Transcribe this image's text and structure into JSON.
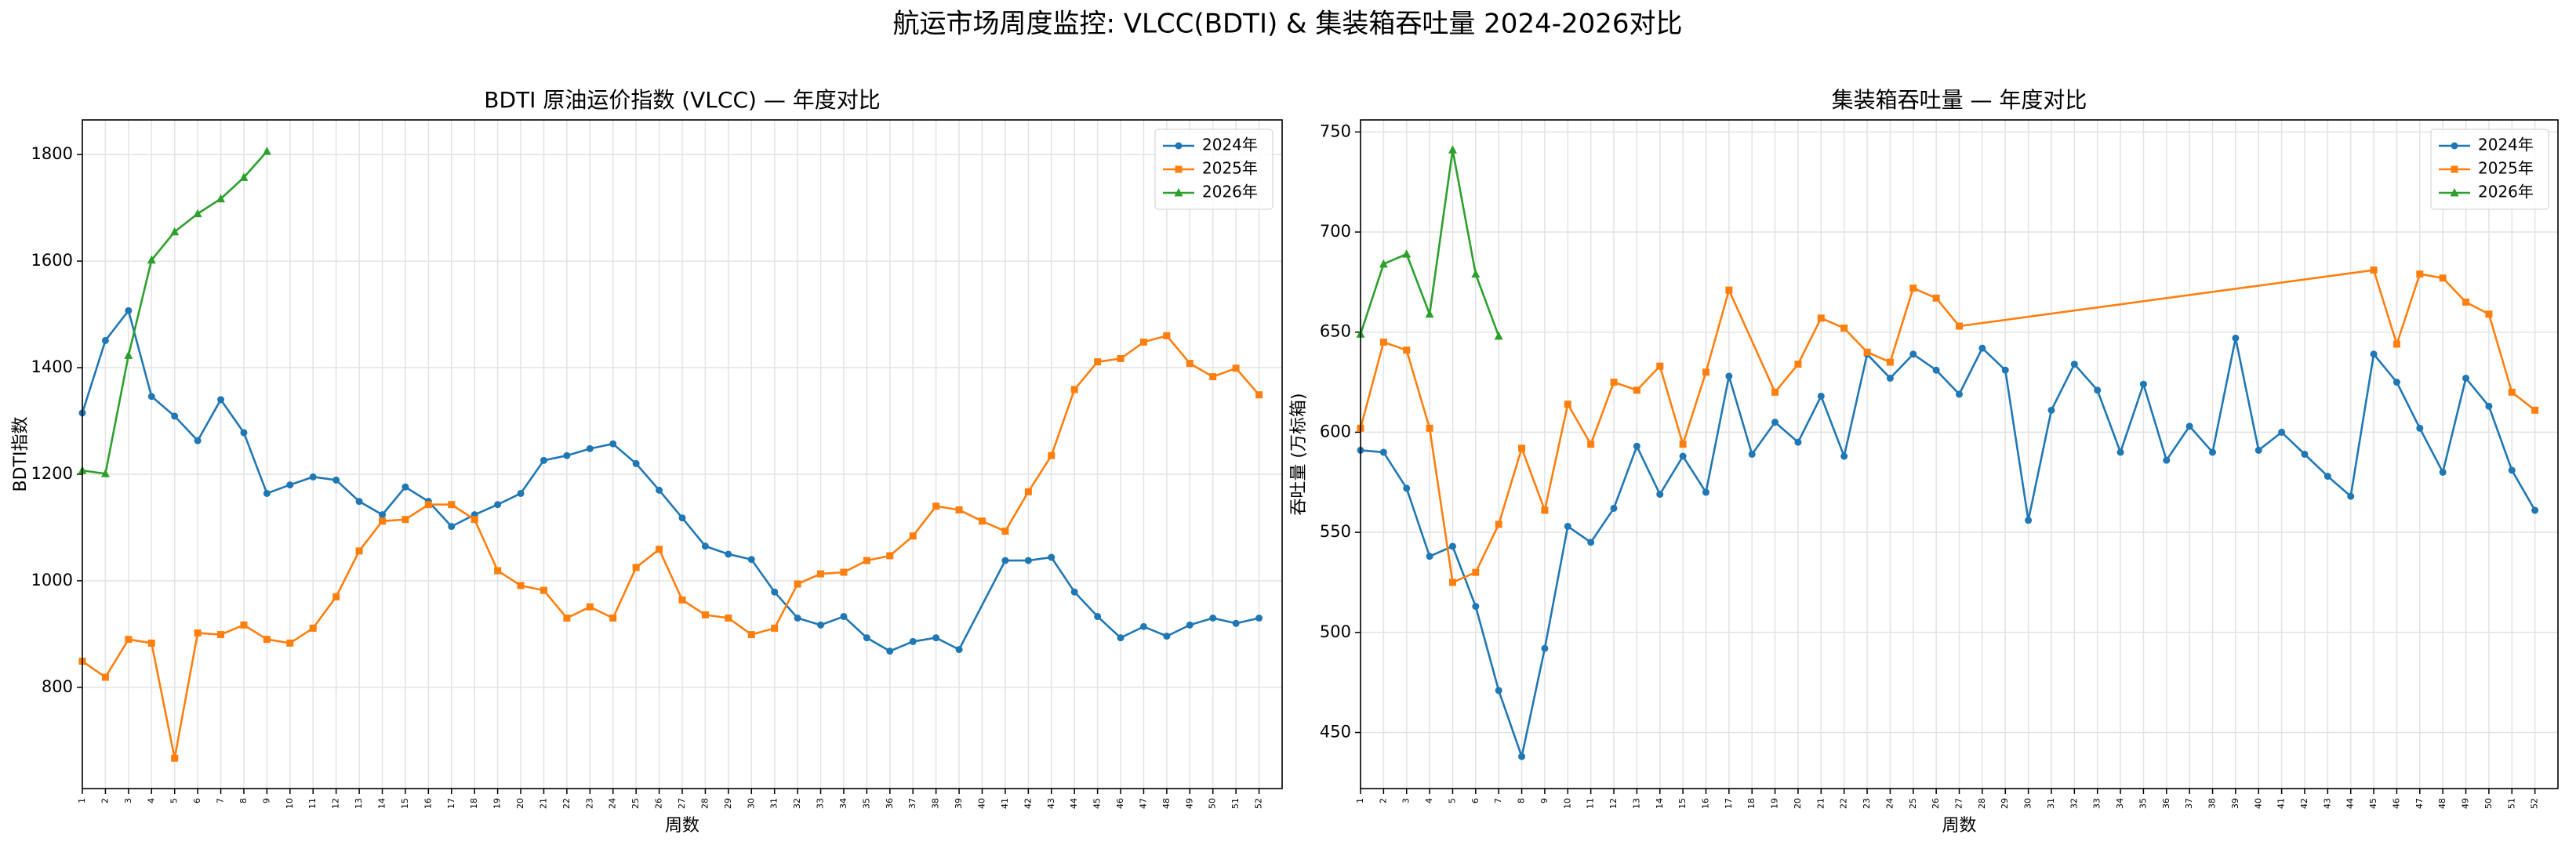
{
  "title": "航运市场周度监控: VLCC(BDTI) & 集装箱吞吐量 2024-2026对比",
  "chart_data": [
    {
      "type": "line",
      "title": "BDTI 原油运价指数 (VLCC) — 年度对比",
      "xlabel": "周数",
      "ylabel": "BDTI指数",
      "xlim": [
        1,
        53
      ],
      "ylim": [
        610,
        1865
      ],
      "xticks": [
        1,
        2,
        3,
        4,
        5,
        6,
        7,
        8,
        9,
        10,
        11,
        12,
        13,
        14,
        15,
        16,
        17,
        18,
        19,
        20,
        21,
        22,
        23,
        24,
        25,
        26,
        27,
        28,
        29,
        30,
        31,
        32,
        33,
        34,
        35,
        36,
        37,
        38,
        39,
        40,
        41,
        42,
        43,
        44,
        45,
        46,
        47,
        48,
        49,
        50,
        51,
        52
      ],
      "yticks": [
        800,
        1000,
        1200,
        1400,
        1600,
        1800
      ],
      "grid": true,
      "legend": "upper right",
      "series": [
        {
          "name": "2024年",
          "color": "#1f77b4",
          "marker": "circle",
          "x": [
            1,
            2,
            3,
            4,
            5,
            6,
            7,
            8,
            9,
            10,
            11,
            12,
            13,
            14,
            15,
            16,
            17,
            18,
            19,
            20,
            21,
            22,
            23,
            24,
            25,
            26,
            27,
            28,
            29,
            30,
            31,
            32,
            33,
            34,
            35,
            36,
            37,
            38,
            39,
            41,
            42,
            43,
            44,
            45,
            46,
            47,
            48,
            49,
            50,
            51,
            52
          ],
          "values": [
            1315,
            1451,
            1507,
            1346,
            1309,
            1263,
            1340,
            1278,
            1164,
            1180,
            1195,
            1189,
            1149,
            1124,
            1176,
            1149,
            1102,
            1124,
            1143,
            1164,
            1226,
            1235,
            1248,
            1257,
            1220,
            1170,
            1118,
            1065,
            1050,
            1040,
            979,
            930,
            917,
            933,
            893,
            868,
            886,
            893,
            871,
            1038,
            1038,
            1044,
            979,
            933,
            893,
            914,
            896,
            917,
            930,
            920,
            930
          ]
        },
        {
          "name": "2025年",
          "color": "#ff7f0e",
          "marker": "square",
          "x": [
            1,
            2,
            3,
            4,
            5,
            6,
            7,
            8,
            9,
            10,
            11,
            12,
            13,
            14,
            15,
            16,
            17,
            18,
            19,
            20,
            21,
            22,
            23,
            24,
            25,
            26,
            27,
            28,
            29,
            30,
            31,
            32,
            33,
            34,
            35,
            36,
            37,
            38,
            39,
            40,
            41,
            42,
            43,
            44,
            45,
            46,
            47,
            48,
            49,
            50,
            51,
            52
          ],
          "values": [
            849,
            819,
            890,
            883,
            667,
            902,
            899,
            917,
            890,
            883,
            911,
            970,
            1056,
            1112,
            1115,
            1143,
            1143,
            1115,
            1019,
            991,
            982,
            930,
            951,
            930,
            1025,
            1059,
            964,
            936,
            930,
            899,
            911,
            994,
            1013,
            1016,
            1038,
            1047,
            1084,
            1140,
            1133,
            1112,
            1093,
            1167,
            1235,
            1359,
            1411,
            1417,
            1448,
            1460,
            1408,
            1383,
            1399,
            1349
          ]
        },
        {
          "name": "2026年",
          "color": "#2ca02c",
          "marker": "triangle",
          "x": [
            1,
            2,
            3,
            4,
            5,
            6,
            7,
            8,
            9
          ],
          "values": [
            1207,
            1201,
            1423,
            1602,
            1655,
            1689,
            1717,
            1757,
            1806
          ]
        }
      ]
    },
    {
      "type": "line",
      "title": "集装箱吞吐量 — 年度对比",
      "xlabel": "周数",
      "ylabel": "吞吐量 (万标箱)",
      "xlim": [
        1,
        53
      ],
      "ylim": [
        422,
        756
      ],
      "xticks": [
        1,
        2,
        3,
        4,
        5,
        6,
        7,
        8,
        9,
        10,
        11,
        12,
        13,
        14,
        15,
        16,
        17,
        18,
        19,
        20,
        21,
        22,
        23,
        24,
        25,
        26,
        27,
        28,
        29,
        30,
        31,
        32,
        33,
        34,
        35,
        36,
        37,
        38,
        39,
        40,
        41,
        42,
        43,
        44,
        45,
        46,
        47,
        48,
        49,
        50,
        51,
        52
      ],
      "yticks": [
        450,
        500,
        550,
        600,
        650,
        700,
        750
      ],
      "grid": true,
      "legend": "upper right",
      "series": [
        {
          "name": "2024年",
          "color": "#1f77b4",
          "marker": "circle",
          "x": [
            1,
            2,
            3,
            4,
            5,
            6,
            7,
            8,
            9,
            10,
            11,
            12,
            13,
            14,
            15,
            16,
            17,
            18,
            19,
            20,
            21,
            22,
            23,
            24,
            25,
            26,
            27,
            28,
            29,
            30,
            31,
            32,
            33,
            34,
            35,
            36,
            37,
            38,
            39,
            40,
            41,
            42,
            43,
            44,
            45,
            46,
            47,
            48,
            49,
            50,
            51,
            52
          ],
          "values": [
            591,
            590,
            572,
            538,
            543,
            513,
            471,
            438,
            492,
            553,
            545,
            562,
            593,
            569,
            588,
            570,
            628,
            589,
            605,
            595,
            618,
            588,
            639,
            627,
            639,
            631,
            619,
            642,
            631,
            556,
            611,
            634,
            621,
            590,
            624,
            586,
            603,
            590,
            647,
            591,
            600,
            589,
            578,
            568,
            639,
            625,
            602,
            580,
            627,
            613,
            581,
            561
          ]
        },
        {
          "name": "2025年",
          "color": "#ff7f0e",
          "marker": "square",
          "x": [
            1,
            2,
            3,
            4,
            5,
            6,
            7,
            8,
            9,
            10,
            11,
            12,
            13,
            14,
            15,
            16,
            17,
            19,
            20,
            21,
            22,
            23,
            24,
            25,
            26,
            27,
            45,
            46,
            47,
            48,
            49,
            50,
            51,
            52
          ],
          "values": [
            602,
            645,
            641,
            602,
            525,
            530,
            554,
            592,
            561,
            614,
            594,
            625,
            621,
            633,
            594,
            630,
            671,
            620,
            634,
            657,
            652,
            640,
            635,
            672,
            667,
            653,
            681,
            644,
            679,
            677,
            665,
            659,
            620,
            611
          ]
        },
        {
          "name": "2026年",
          "color": "#2ca02c",
          "marker": "triangle",
          "x": [
            1,
            2,
            3,
            4,
            5,
            6,
            7
          ],
          "values": [
            649,
            684,
            689,
            659,
            741,
            679,
            648
          ]
        }
      ]
    }
  ]
}
